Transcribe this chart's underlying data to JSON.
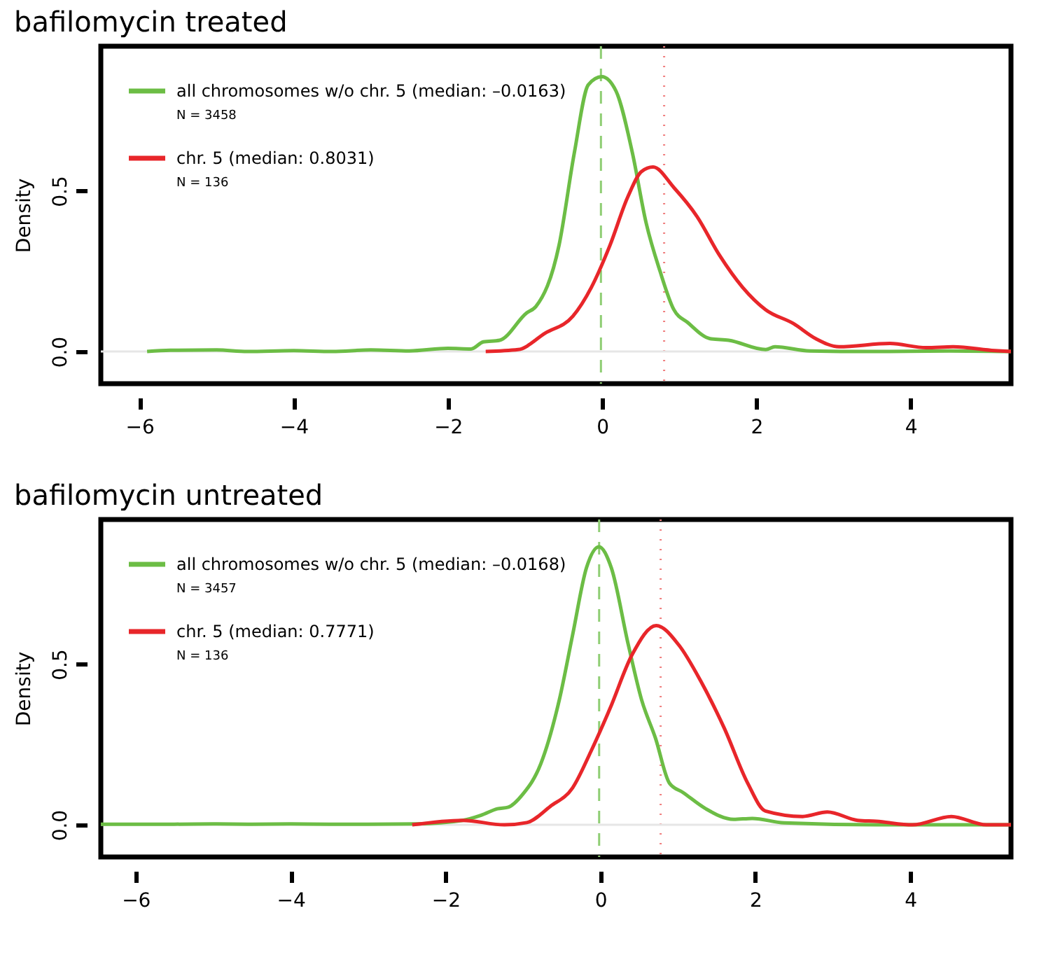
{
  "chart_data": [
    {
      "type": "line",
      "title": "bafilomycin treated",
      "ylabel": "Density",
      "xlim": [
        -6.5,
        5.3
      ],
      "ylim": [
        -0.1,
        0.95
      ],
      "xticks": [
        -6,
        -4,
        -2,
        0,
        2,
        4
      ],
      "yticks": [
        {
          "value": 0,
          "label": "0.0"
        },
        0.5
      ],
      "grid": false,
      "legend": "top left",
      "marker": "none",
      "line_style": "solid",
      "series": [
        {
          "name": "all chromosomes w/o chr. 5  (median: –0.0163)",
          "color": "#6cbd45",
          "x": [
            -5.9,
            -5.6,
            -5.0,
            -4.6,
            -4.0,
            -3.5,
            -3.0,
            -2.5,
            -2.0,
            -1.7,
            -1.54,
            -1.33,
            -0.98,
            -0.86,
            -0.56,
            -0.36,
            -0.18,
            -0.005,
            0.18,
            0.39,
            0.57,
            0.75,
            0.93,
            1.11,
            1.4,
            1.64,
            2.12,
            2.24,
            2.69,
            3.5,
            4.5,
            5.3
          ],
          "values": [
            0,
            0.004,
            0.005,
            0,
            0.003,
            0,
            0.005,
            0.002,
            0.01,
            0.008,
            0.03,
            0.035,
            0.12,
            0.14,
            0.33,
            0.62,
            0.83,
            0.855,
            0.81,
            0.62,
            0.4,
            0.25,
            0.13,
            0.09,
            0.04,
            0.035,
            0.006,
            0.015,
            0.002,
            0,
            0.002,
            0
          ]
        },
        {
          "name": "chr. 5  (median: 0.8031)",
          "color": "#e8262a",
          "x": [
            -1.51,
            -1.09,
            -0.74,
            -0.38,
            -0.14,
            0.1,
            0.33,
            0.51,
            0.66,
            0.93,
            1.23,
            1.52,
            1.82,
            2.12,
            2.48,
            2.77,
            3.07,
            3.73,
            4.2,
            4.55,
            5.09,
            5.3
          ],
          "values": [
            0,
            0.006,
            0.057,
            0.11,
            0.2,
            0.33,
            0.48,
            0.56,
            0.574,
            0.51,
            0.42,
            0.3,
            0.2,
            0.13,
            0.087,
            0.04,
            0.015,
            0.025,
            0.012,
            0.015,
            0.003,
            0
          ]
        }
      ],
      "annotations": [
        "N = 3458",
        "N = 136"
      ],
      "ref_lines": [
        {
          "axis": "y",
          "value": 0,
          "color": "#e6e6e6",
          "line_style": "solid"
        },
        {
          "axis": "x",
          "value": -0.0163,
          "color": "#8fce74",
          "line_style": "dashed"
        },
        {
          "axis": "x",
          "value": 0.8031,
          "color": "#f08080",
          "line_style": "dotted"
        }
      ]
    },
    {
      "type": "line",
      "title": "bafilomycin untreated",
      "ylabel": "Density",
      "xlim": [
        -6.45,
        5.3
      ],
      "ylim": [
        -0.1,
        0.95
      ],
      "xticks": [
        -6,
        -4,
        -2,
        0,
        2,
        4
      ],
      "yticks": [
        {
          "value": 0,
          "label": "0.0"
        },
        0.5
      ],
      "grid": false,
      "legend": "top left",
      "marker": "none",
      "line_style": "solid",
      "series": [
        {
          "name": "all chromosomes w/o chr. 5  (median: –0.0168)",
          "color": "#6cbd45",
          "x": [
            -6.45,
            -5.5,
            -5.0,
            -4.5,
            -4.0,
            -3.5,
            -3.0,
            -2.37,
            -1.78,
            -1.54,
            -1.33,
            -1.19,
            -1.01,
            -0.77,
            -0.53,
            -0.36,
            -0.18,
            -0.02,
            0.14,
            0.36,
            0.53,
            0.71,
            0.89,
            1.07,
            1.36,
            1.72,
            1.96,
            2.37,
            3.56,
            4.5,
            5.3
          ],
          "values": [
            0.002,
            0.002,
            0.003,
            0.002,
            0.003,
            0.002,
            0.002,
            0.003,
            0.014,
            0.03,
            0.05,
            0.055,
            0.093,
            0.19,
            0.39,
            0.59,
            0.8,
            0.865,
            0.8,
            0.56,
            0.39,
            0.27,
            0.13,
            0.1,
            0.05,
            0.017,
            0.02,
            0.006,
            0,
            0,
            0
          ]
        },
        {
          "name": "chr. 5  (median: 0.7771)",
          "color": "#e8262a",
          "x": [
            -2.43,
            -1.78,
            -1.24,
            -0.95,
            -0.65,
            -0.36,
            -0.12,
            0.12,
            0.41,
            0.72,
            1.01,
            1.3,
            1.6,
            1.9,
            2.13,
            2.61,
            2.93,
            3.32,
            3.56,
            4.03,
            4.53,
            4.98,
            5.3
          ],
          "values": [
            0,
            0.014,
            0,
            0.007,
            0.057,
            0.115,
            0.23,
            0.36,
            0.53,
            0.62,
            0.56,
            0.445,
            0.3,
            0.13,
            0.043,
            0.026,
            0.04,
            0.014,
            0.011,
            0,
            0.026,
            0,
            0
          ]
        }
      ],
      "annotations": [
        "N = 3457",
        "N = 136"
      ],
      "ref_lines": [
        {
          "axis": "y",
          "value": 0,
          "color": "#e6e6e6",
          "line_style": "solid"
        },
        {
          "axis": "x",
          "value": -0.0168,
          "color": "#8fce74",
          "line_style": "dashed"
        },
        {
          "axis": "x",
          "value": 0.7771,
          "color": "#f08080",
          "line_style": "dotted"
        }
      ]
    }
  ]
}
